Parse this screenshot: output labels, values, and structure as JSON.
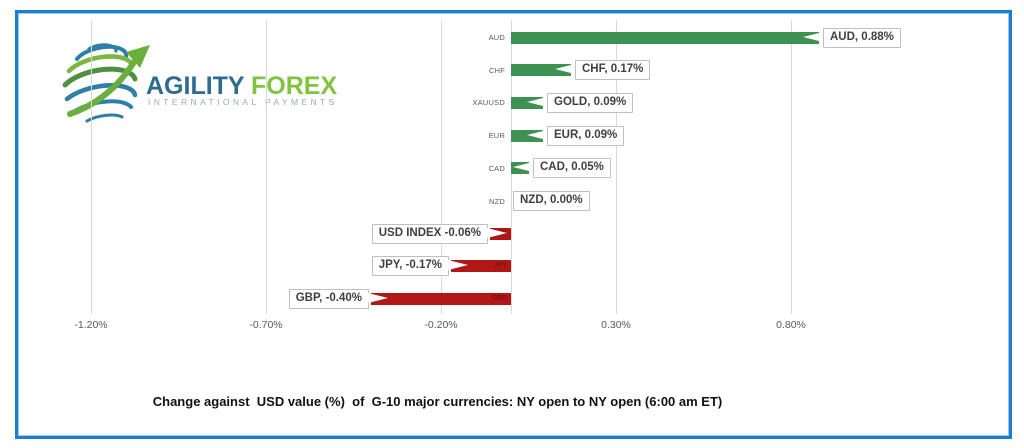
{
  "logo": {
    "brand_primary": "AGILITY",
    "brand_secondary": "FOREX",
    "tagline": "INTERNATIONAL PAYMENTS",
    "colors": {
      "brand_primary": "#2e6b91",
      "brand_secondary": "#82c341",
      "tagline": "#9fa8ae",
      "globe_blue": "#2d7fa8",
      "globe_green": "#7cb742",
      "globe_dark_green": "#4e9040",
      "arrow_green": "#6aae3d"
    }
  },
  "frame": {
    "border_color": "#1e7dcd"
  },
  "chart_data": {
    "type": "bar",
    "orientation": "horizontal",
    "title": "Change against  USD value (%)  of  G-10 major currencies: NY open to NY open (6:00 am ET)",
    "categories": [
      "AUD",
      "CHF",
      "XAUUSD",
      "EUR",
      "CAD",
      "NZD",
      "DXY",
      "JPY",
      "GBP"
    ],
    "values": [
      0.88,
      0.17,
      0.09,
      0.09,
      0.05,
      0.0,
      -0.06,
      -0.17,
      -0.4
    ],
    "rows": [
      {
        "ticker": "AUD",
        "value": 0.88,
        "callout": "AUD, 0.88%",
        "axis_label": "AUD",
        "bar_tag": null
      },
      {
        "ticker": "CHF",
        "value": 0.17,
        "callout": "CHF, 0.17%",
        "axis_label": "CHF",
        "bar_tag": null
      },
      {
        "ticker": "XAUUSD",
        "value": 0.09,
        "callout": "GOLD, 0.09%",
        "axis_label": "XAUUSD",
        "bar_tag": null
      },
      {
        "ticker": "EUR",
        "value": 0.09,
        "callout": "EUR, 0.09%",
        "axis_label": "EUR",
        "bar_tag": null
      },
      {
        "ticker": "CAD",
        "value": 0.05,
        "callout": "CAD, 0.05%",
        "axis_label": "CAD",
        "bar_tag": null
      },
      {
        "ticker": "NZD",
        "value": 0.0,
        "callout": "NZD, 0.00%",
        "axis_label": "NZD",
        "bar_tag": null
      },
      {
        "ticker": "DXY",
        "value": -0.06,
        "callout": "USD INDEX -0.06%",
        "axis_label": null,
        "bar_tag": "DXY"
      },
      {
        "ticker": "JPY",
        "value": -0.17,
        "callout": "JPY, -0.17%",
        "axis_label": null,
        "bar_tag": "JPY"
      },
      {
        "ticker": "GBP",
        "value": -0.4,
        "callout": "GBP, -0.40%",
        "axis_label": null,
        "bar_tag": "GBP"
      }
    ],
    "axis_ticks": [
      "-1.20%",
      "-0.70%",
      "-0.20%",
      "0.30%",
      "0.80%"
    ],
    "axis_tick_values": [
      -1.2,
      -0.7,
      -0.2,
      0.3,
      0.8
    ],
    "xlim": [
      -1.42,
      1.3
    ],
    "grid": true,
    "legend": "none",
    "positive_color": "#3e9150",
    "negative_color": "#b11717",
    "bar_tag_color": "#7f1010",
    "gridline_color": "#d9d9d9",
    "axis_text_color": "#595959"
  }
}
